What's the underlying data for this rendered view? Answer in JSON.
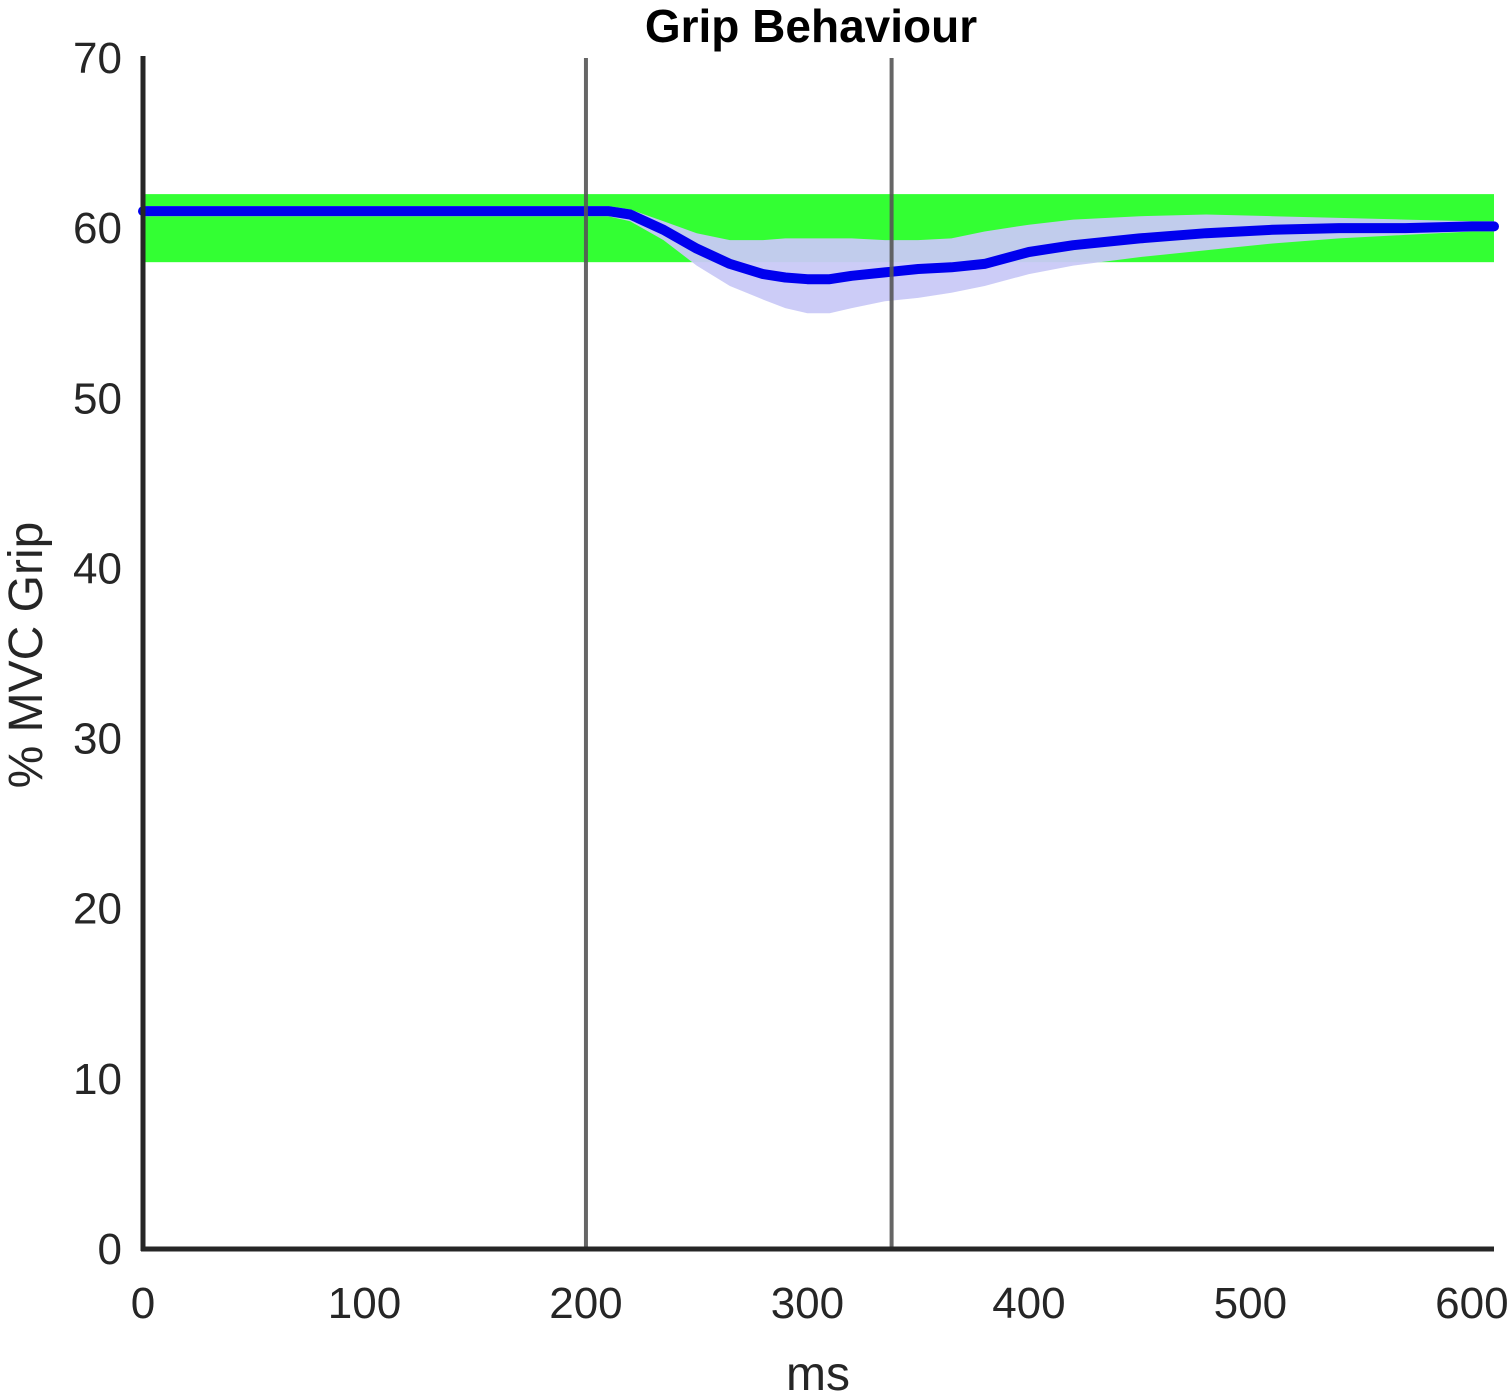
{
  "chart_data": {
    "type": "line",
    "title": "Grip Behaviour",
    "xlabel": "ms",
    "ylabel": "% MVC Grip",
    "xlim": [
      0,
      610
    ],
    "ylim": [
      0,
      70
    ],
    "xticks": [
      0,
      100,
      200,
      300,
      400,
      500,
      600
    ],
    "yticks": [
      0,
      10,
      20,
      30,
      40,
      50,
      60,
      70
    ],
    "xtick_labels": [
      "0",
      "100",
      "200",
      "300",
      "400",
      "500",
      "600"
    ],
    "ytick_labels": [
      "0",
      "10",
      "20",
      "30",
      "40",
      "50",
      "60",
      "70"
    ],
    "grid": false,
    "target_band": {
      "ymin": 58.0,
      "ymax": 62.0,
      "color": "#33ff33"
    },
    "vertical_lines": [
      {
        "x": 200
      },
      {
        "x": 338
      }
    ],
    "series": [
      {
        "color": "#0000ee",
        "band_color": "#c9c9f7",
        "x": [
          0,
          50,
          100,
          150,
          190,
          210,
          220,
          235,
          250,
          265,
          280,
          290,
          300,
          310,
          320,
          335,
          350,
          365,
          380,
          400,
          420,
          450,
          480,
          510,
          540,
          570,
          600,
          610
        ],
        "y": [
          61.0,
          61.0,
          61.0,
          61.0,
          61.0,
          61.0,
          60.8,
          59.9,
          58.8,
          57.9,
          57.3,
          57.1,
          57.0,
          57.0,
          57.2,
          57.4,
          57.6,
          57.7,
          57.9,
          58.6,
          59.0,
          59.4,
          59.7,
          59.9,
          60.0,
          60.0,
          60.1,
          60.1
        ],
        "lower": [
          60.7,
          60.7,
          60.7,
          60.7,
          60.7,
          60.7,
          60.4,
          59.3,
          57.8,
          56.6,
          55.8,
          55.3,
          55.0,
          55.0,
          55.3,
          55.7,
          55.9,
          56.2,
          56.6,
          57.3,
          57.8,
          58.3,
          58.7,
          59.1,
          59.4,
          59.6,
          59.8,
          59.8
        ],
        "upper": [
          61.3,
          61.3,
          61.3,
          61.3,
          61.3,
          61.3,
          61.1,
          60.4,
          59.7,
          59.3,
          59.3,
          59.4,
          59.4,
          59.4,
          59.4,
          59.3,
          59.3,
          59.4,
          59.8,
          60.2,
          60.5,
          60.7,
          60.8,
          60.7,
          60.6,
          60.5,
          60.4,
          60.4
        ]
      }
    ]
  }
}
